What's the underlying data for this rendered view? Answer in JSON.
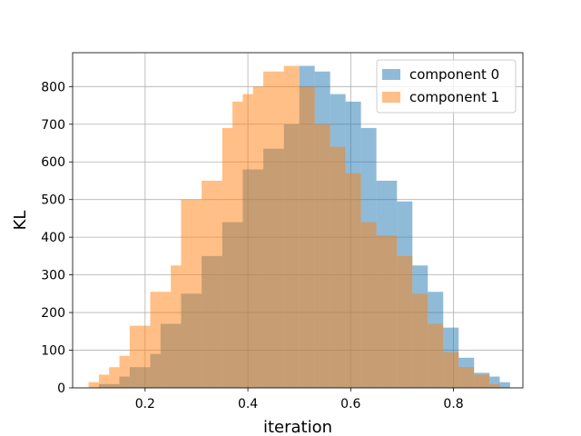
{
  "chart_data": {
    "type": "histogram",
    "title": "",
    "xlabel": "iteration",
    "ylabel": "KL",
    "xlim": [
      0.059,
      0.935
    ],
    "ylim": [
      0,
      890
    ],
    "xticks": [
      0.2,
      0.4,
      0.6,
      0.8
    ],
    "xtick_labels": [
      "0.2",
      "0.4",
      "0.6",
      "0.8"
    ],
    "yticks": [
      0,
      100,
      200,
      300,
      400,
      500,
      600,
      700,
      800
    ],
    "ytick_labels": [
      "0",
      "100",
      "200",
      "300",
      "400",
      "500",
      "600",
      "700",
      "800"
    ],
    "grid": true,
    "legend": "top-right",
    "alpha": 0.5,
    "series": [
      {
        "name": "component 0",
        "color": "#1f77b4",
        "bin_edges": [
          0.11,
          0.13,
          0.15,
          0.17,
          0.19,
          0.21,
          0.23,
          0.27,
          0.31,
          0.35,
          0.39,
          0.43,
          0.47,
          0.5,
          0.53,
          0.56,
          0.59,
          0.62,
          0.65,
          0.69,
          0.72,
          0.75,
          0.78,
          0.81,
          0.84,
          0.87,
          0.89,
          0.91
        ],
        "counts": [
          10,
          10,
          30,
          55,
          55,
          90,
          170,
          250,
          350,
          440,
          580,
          635,
          700,
          855,
          840,
          780,
          760,
          690,
          550,
          495,
          325,
          255,
          160,
          80,
          40,
          30,
          15
        ]
      },
      {
        "name": "component 1",
        "color": "#ff7f0e",
        "bin_edges": [
          0.09,
          0.11,
          0.13,
          0.15,
          0.17,
          0.19,
          0.21,
          0.23,
          0.25,
          0.27,
          0.31,
          0.35,
          0.37,
          0.39,
          0.41,
          0.43,
          0.47,
          0.5,
          0.53,
          0.56,
          0.59,
          0.62,
          0.65,
          0.69,
          0.72,
          0.75,
          0.78,
          0.81,
          0.84,
          0.87,
          0.89
        ],
        "counts": [
          15,
          35,
          55,
          85,
          165,
          165,
          255,
          255,
          325,
          500,
          550,
          690,
          760,
          780,
          800,
          840,
          855,
          800,
          700,
          640,
          570,
          440,
          405,
          350,
          250,
          170,
          95,
          55,
          35,
          10
        ]
      }
    ]
  }
}
